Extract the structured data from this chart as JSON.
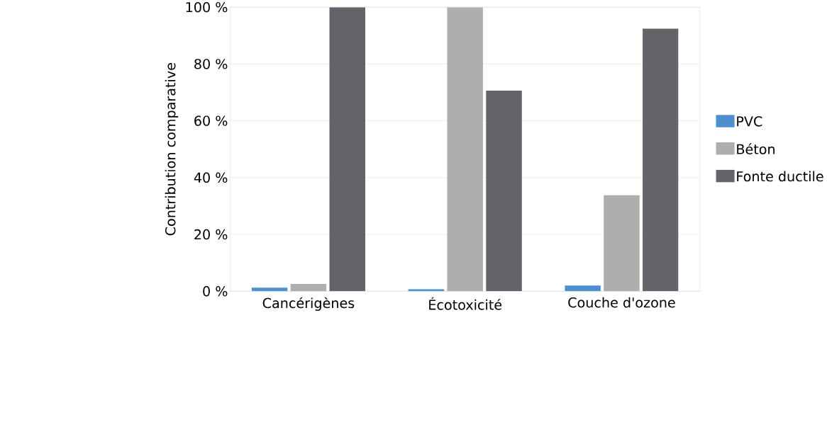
{
  "chart_data": {
    "type": "bar",
    "ylabel": "Contribution comparative",
    "categories": [
      "Cancérigènes",
      "Écotoxicité",
      "Couche d'ozone"
    ],
    "series": [
      {
        "name": "PVC",
        "color": "#4f8fd0",
        "values": [
          1.3,
          0.7,
          2.0
        ]
      },
      {
        "name": "Béton",
        "color": "#adafae",
        "values": [
          2.6,
          100,
          33.8
        ]
      },
      {
        "name": "Fonte ductile",
        "color": "#626469",
        "values": [
          100,
          70.6,
          92.4
        ]
      }
    ],
    "ylim": [
      0,
      100
    ],
    "yticks": [
      {
        "value": 0,
        "label": "0 %"
      },
      {
        "value": 20,
        "label": "20 %"
      },
      {
        "value": 40,
        "label": "40 %"
      },
      {
        "value": 60,
        "label": "60 %"
      },
      {
        "value": 80,
        "label": "80 %"
      },
      {
        "value": 100,
        "label": "100 %"
      }
    ],
    "grid": "y",
    "legend": "right"
  }
}
